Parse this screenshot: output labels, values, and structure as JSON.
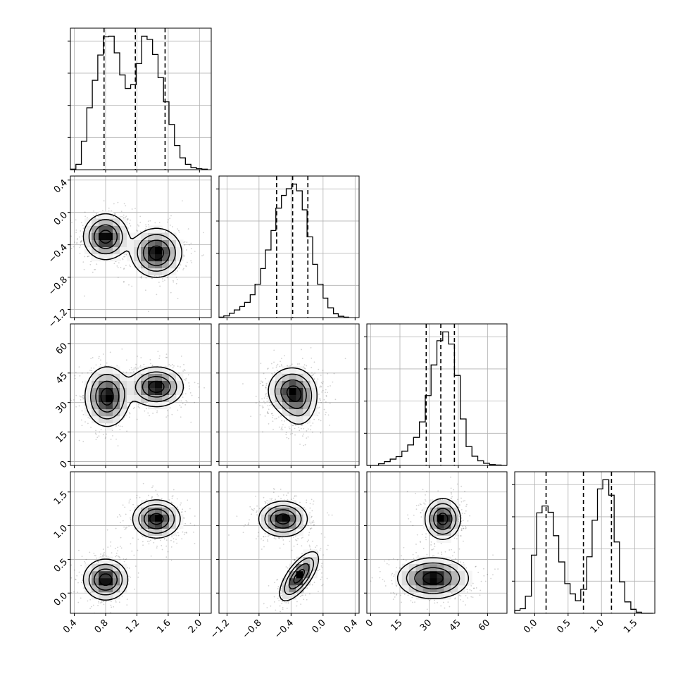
{
  "chart_data": {
    "type": "corner",
    "grid": true,
    "colors": {
      "line": "#000000",
      "grid": "#b0b0b0",
      "density_dark": "#000000",
      "density_light": "#ffffff"
    },
    "params": [
      {
        "index": 0,
        "range": [
          0.35,
          2.15
        ],
        "ticks": [
          0.4,
          0.8,
          1.2,
          1.6,
          2.0
        ],
        "tick_labels": [
          "0.4",
          "0.8",
          "1.2",
          "1.6",
          "2.0"
        ],
        "quantiles": [
          0.78,
          1.18,
          1.56
        ]
      },
      {
        "index": 1,
        "range": [
          -1.3,
          0.45
        ],
        "ticks": [
          -1.2,
          -0.8,
          -0.4,
          0.0,
          0.4
        ],
        "tick_labels": [
          "−1.2",
          "−0.8",
          "−0.4",
          "0.0",
          "0.4"
        ],
        "quantiles": [
          -0.58,
          -0.38,
          -0.19
        ]
      },
      {
        "index": 2,
        "range": [
          -2,
          70
        ],
        "ticks": [
          0,
          15,
          30,
          45,
          60
        ],
        "tick_labels": [
          "0",
          "15",
          "30",
          "45",
          "60"
        ],
        "quantiles": [
          28.5,
          36.0,
          43.0
        ]
      },
      {
        "index": 3,
        "range": [
          -0.3,
          1.8
        ],
        "ticks": [
          0.0,
          0.5,
          1.0,
          1.5
        ],
        "tick_labels": [
          "0.0",
          "0.5",
          "1.0",
          "1.5"
        ],
        "quantiles": [
          0.17,
          0.73,
          1.15
        ]
      }
    ],
    "histograms": [
      {
        "param": 0,
        "edges": [
          0.35,
          0.42,
          0.49,
          0.56,
          0.63,
          0.7,
          0.77,
          0.84,
          0.91,
          0.98,
          1.05,
          1.12,
          1.19,
          1.26,
          1.33,
          1.4,
          1.47,
          1.54,
          1.61,
          1.68,
          1.75,
          1.82,
          1.89,
          1.96,
          2.03,
          2.1
        ],
        "counts": [
          1,
          10,
          53,
          115,
          166,
          213,
          247,
          248,
          217,
          176,
          151,
          158,
          197,
          248,
          242,
          214,
          171,
          126,
          84,
          45,
          22,
          10,
          4,
          2,
          1
        ]
      },
      {
        "param": 1,
        "edges": [
          -1.3,
          -1.24,
          -1.17,
          -1.11,
          -1.04,
          -0.98,
          -0.91,
          -0.85,
          -0.78,
          -0.72,
          -0.65,
          -0.59,
          -0.52,
          -0.46,
          -0.39,
          -0.33,
          -0.26,
          -0.2,
          -0.13,
          -0.07,
          0.0,
          0.06,
          0.13,
          0.19,
          0.26,
          0.32
        ],
        "counts": [
          1,
          4,
          10,
          18,
          26,
          36,
          54,
          79,
          116,
          160,
          206,
          259,
          289,
          305,
          316,
          300,
          255,
          191,
          126,
          79,
          46,
          23,
          9,
          3,
          1
        ]
      },
      {
        "param": 2,
        "edges": [
          -2,
          1,
          4,
          7,
          10,
          13,
          16,
          19,
          22,
          25,
          28,
          31,
          34,
          37,
          40,
          43,
          46,
          49,
          52,
          55,
          58,
          61,
          64,
          67,
          70
        ],
        "counts": [
          0,
          0,
          4,
          9,
          15,
          21,
          34,
          49,
          67,
          104,
          167,
          240,
          298,
          319,
          290,
          215,
          111,
          45,
          22,
          11,
          5,
          2,
          1,
          0
        ]
      },
      {
        "param": 3,
        "edges": [
          -0.3,
          -0.22,
          -0.14,
          -0.05,
          0.03,
          0.11,
          0.2,
          0.28,
          0.36,
          0.45,
          0.53,
          0.61,
          0.69,
          0.78,
          0.86,
          0.94,
          1.02,
          1.11,
          1.19,
          1.27,
          1.35,
          1.44,
          1.52,
          1.6,
          1.68,
          1.77
        ],
        "counts": [
          5,
          8,
          30,
          102,
          176,
          188,
          177,
          136,
          90,
          52,
          34,
          22,
          42,
          99,
          163,
          218,
          234,
          207,
          125,
          55,
          20,
          7,
          2,
          0,
          0
        ]
      }
    ],
    "joint_panels": [
      {
        "x_param": 0,
        "y_param": 1,
        "clusters": [
          {
            "center": [
              0.8,
              -0.3
            ],
            "spread": [
              0.14,
              0.14
            ],
            "weight": 0.5
          },
          {
            "center": [
              1.45,
              -0.5
            ],
            "spread": [
              0.16,
              0.15
            ],
            "weight": 0.5
          }
        ]
      },
      {
        "x_param": 0,
        "y_param": 2,
        "clusters": [
          {
            "center": [
              0.82,
              33
            ],
            "spread": [
              0.14,
              7.5
            ],
            "weight": 0.5
          },
          {
            "center": [
              1.45,
              38
            ],
            "spread": [
              0.17,
              5.0
            ],
            "weight": 0.5
          }
        ]
      },
      {
        "x_param": 1,
        "y_param": 2,
        "clusters": [
          {
            "center": [
              -0.4,
              36
            ],
            "spread": [
              0.15,
              6.0
            ],
            "weight": 0.65
          },
          {
            "center": [
              -0.3,
              30
            ],
            "spread": [
              0.12,
              7.0
            ],
            "weight": 0.35
          }
        ]
      },
      {
        "x_param": 0,
        "y_param": 3,
        "clusters": [
          {
            "center": [
              0.8,
              0.2
            ],
            "spread": [
              0.14,
              0.15
            ],
            "weight": 0.5
          },
          {
            "center": [
              1.45,
              1.1
            ],
            "spread": [
              0.15,
              0.14
            ],
            "weight": 0.5
          }
        ]
      },
      {
        "x_param": 1,
        "y_param": 3,
        "clusters": [
          {
            "center": [
              -0.5,
              1.1
            ],
            "spread": [
              0.15,
              0.13
            ],
            "weight": 0.5
          },
          {
            "center": [
              -0.3,
              0.25
            ],
            "spread": [
              0.12,
              0.18
            ],
            "weight": 0.5,
            "corr": 0.7
          }
        ]
      },
      {
        "x_param": 2,
        "y_param": 3,
        "clusters": [
          {
            "center": [
              37,
              1.1
            ],
            "spread": [
              4.5,
              0.15
            ],
            "weight": 0.5
          },
          {
            "center": [
              32,
              0.22
            ],
            "spread": [
              9.0,
              0.15
            ],
            "weight": 0.5
          }
        ]
      }
    ]
  }
}
